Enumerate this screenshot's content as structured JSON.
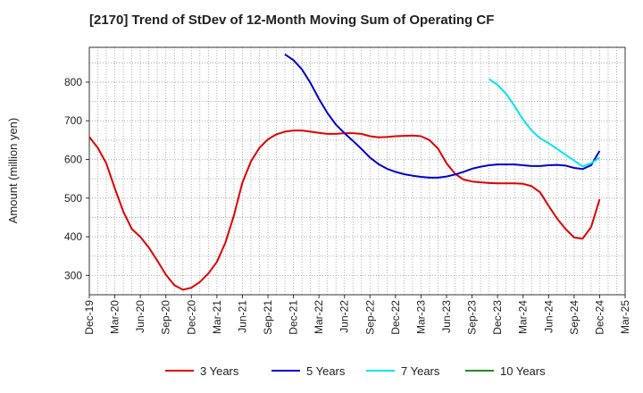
{
  "chart_data": {
    "type": "line",
    "title": "[2170]  Trend of StDev of 12-Month Moving Sum of Operating CF",
    "xlabel": "",
    "ylabel": "Amount (million yen)",
    "ylim": [
      250,
      890
    ],
    "yticks": [
      300,
      400,
      500,
      600,
      700,
      800
    ],
    "x_ticks": [
      "Dec-19",
      "Mar-20",
      "Jun-20",
      "Sep-20",
      "Dec-20",
      "Mar-21",
      "Jun-21",
      "Sep-21",
      "Dec-21",
      "Mar-22",
      "Jun-22",
      "Sep-22",
      "Dec-22",
      "Mar-23",
      "Jun-23",
      "Sep-23",
      "Dec-23",
      "Mar-24",
      "Jun-24",
      "Sep-24",
      "Dec-24",
      "Mar-25"
    ],
    "x_range": [
      "Dec-19",
      "Mar-25"
    ],
    "grid": true,
    "legend_position": "bottom",
    "series": [
      {
        "name": "3 Years",
        "color": "#e00000",
        "points": [
          [
            "Dec-19",
            658
          ],
          [
            "Jan-20",
            630
          ],
          [
            "Feb-20",
            590
          ],
          [
            "Mar-20",
            525
          ],
          [
            "Apr-20",
            465
          ],
          [
            "May-20",
            420
          ],
          [
            "Jun-20",
            400
          ],
          [
            "Jul-20",
            372
          ],
          [
            "Aug-20",
            338
          ],
          [
            "Sep-20",
            302
          ],
          [
            "Oct-20",
            275
          ],
          [
            "Nov-20",
            263
          ],
          [
            "Dec-20",
            268
          ],
          [
            "Jan-21",
            283
          ],
          [
            "Feb-21",
            305
          ],
          [
            "Mar-21",
            335
          ],
          [
            "Apr-21",
            385
          ],
          [
            "May-21",
            455
          ],
          [
            "Jun-21",
            540
          ],
          [
            "Jul-21",
            595
          ],
          [
            "Aug-21",
            630
          ],
          [
            "Sep-21",
            652
          ],
          [
            "Oct-21",
            665
          ],
          [
            "Nov-21",
            672
          ],
          [
            "Dec-21",
            675
          ],
          [
            "Jan-22",
            675
          ],
          [
            "Feb-22",
            672
          ],
          [
            "Mar-22",
            669
          ],
          [
            "Apr-22",
            666
          ],
          [
            "May-22",
            666
          ],
          [
            "Jun-22",
            668
          ],
          [
            "Jul-22",
            668
          ],
          [
            "Aug-22",
            666
          ],
          [
            "Sep-22",
            660
          ],
          [
            "Oct-22",
            657
          ],
          [
            "Nov-22",
            658
          ],
          [
            "Dec-22",
            660
          ],
          [
            "Jan-23",
            661
          ],
          [
            "Feb-23",
            662
          ],
          [
            "Mar-23",
            660
          ],
          [
            "Apr-23",
            650
          ],
          [
            "May-23",
            628
          ],
          [
            "Jun-23",
            590
          ],
          [
            "Jul-23",
            563
          ],
          [
            "Aug-23",
            548
          ],
          [
            "Sep-23",
            543
          ],
          [
            "Oct-23",
            541
          ],
          [
            "Nov-23",
            539
          ],
          [
            "Dec-23",
            538
          ],
          [
            "Jan-24",
            538
          ],
          [
            "Feb-24",
            538
          ],
          [
            "Mar-24",
            537
          ],
          [
            "Apr-24",
            531
          ],
          [
            "May-24",
            515
          ],
          [
            "Jun-24",
            480
          ],
          [
            "Jul-24",
            447
          ],
          [
            "Aug-24",
            420
          ],
          [
            "Sep-24",
            398
          ],
          [
            "Oct-24",
            395
          ],
          [
            "Nov-24",
            425
          ],
          [
            "Dec-24",
            497
          ]
        ]
      },
      {
        "name": "5 Years",
        "color": "#0000cc",
        "points": [
          [
            "Nov-21",
            872
          ],
          [
            "Dec-21",
            857
          ],
          [
            "Jan-22",
            833
          ],
          [
            "Feb-22",
            798
          ],
          [
            "Mar-22",
            757
          ],
          [
            "Apr-22",
            720
          ],
          [
            "May-22",
            690
          ],
          [
            "Jun-22",
            668
          ],
          [
            "Jul-22",
            648
          ],
          [
            "Aug-22",
            627
          ],
          [
            "Sep-22",
            605
          ],
          [
            "Oct-22",
            588
          ],
          [
            "Nov-22",
            576
          ],
          [
            "Dec-22",
            568
          ],
          [
            "Jan-23",
            562
          ],
          [
            "Feb-23",
            558
          ],
          [
            "Mar-23",
            555
          ],
          [
            "Apr-23",
            553
          ],
          [
            "May-23",
            553
          ],
          [
            "Jun-23",
            556
          ],
          [
            "Jul-23",
            561
          ],
          [
            "Aug-23",
            568
          ],
          [
            "Sep-23",
            576
          ],
          [
            "Oct-23",
            581
          ],
          [
            "Nov-23",
            585
          ],
          [
            "Dec-23",
            587
          ],
          [
            "Jan-24",
            587
          ],
          [
            "Feb-24",
            587
          ],
          [
            "Mar-24",
            585
          ],
          [
            "Apr-24",
            583
          ],
          [
            "May-24",
            583
          ],
          [
            "Jun-24",
            585
          ],
          [
            "Jul-24",
            586
          ],
          [
            "Aug-24",
            584
          ],
          [
            "Sep-24",
            578
          ],
          [
            "Oct-24",
            575
          ],
          [
            "Nov-24",
            585
          ],
          [
            "Dec-24",
            622
          ]
        ]
      },
      {
        "name": "7 Years",
        "color": "#00e5ee",
        "points": [
          [
            "Nov-23",
            808
          ],
          [
            "Dec-23",
            793
          ],
          [
            "Jan-24",
            770
          ],
          [
            "Feb-24",
            738
          ],
          [
            "Mar-24",
            703
          ],
          [
            "Apr-24",
            675
          ],
          [
            "May-24",
            655
          ],
          [
            "Jun-24",
            642
          ],
          [
            "Jul-24",
            627
          ],
          [
            "Aug-24",
            612
          ],
          [
            "Sep-24",
            597
          ],
          [
            "Oct-24",
            582
          ],
          [
            "Nov-24",
            590
          ],
          [
            "Dec-24",
            605
          ]
        ]
      },
      {
        "name": "10 Years",
        "color": "#228b22",
        "points": []
      }
    ]
  }
}
